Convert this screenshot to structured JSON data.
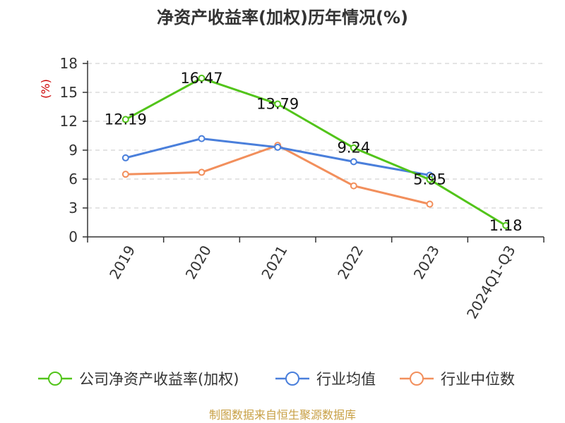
{
  "chart_data": {
    "type": "line",
    "title": "净资产收益率(加权)历年情况(%)",
    "ylabel": "(%)",
    "ylim": [
      0,
      18
    ],
    "yticks": [
      0,
      3,
      6,
      9,
      12,
      15,
      18
    ],
    "grid": true,
    "legend_position": "bottom",
    "categories": [
      "2019",
      "2020",
      "2021",
      "2022",
      "2023",
      "2024Q1-Q3"
    ],
    "series": [
      {
        "name": "公司净资产收益率(加权)",
        "color": "#52c41a",
        "values": [
          12.19,
          16.47,
          13.79,
          9.24,
          5.95,
          1.18
        ],
        "labels": [
          "12.19",
          "16.47",
          "13.79",
          "9.24",
          "5.95",
          "1.18"
        ]
      },
      {
        "name": "行业均值",
        "color": "#4a7fdb",
        "values": [
          8.2,
          10.2,
          9.3,
          7.8,
          6.4,
          null
        ]
      },
      {
        "name": "行业中位数",
        "color": "#f28f5c",
        "values": [
          6.5,
          6.7,
          9.5,
          5.3,
          3.4,
          null
        ]
      }
    ]
  },
  "source": {
    "text": "制图数据来自恒生聚源数据库",
    "color": "#c8a046"
  },
  "ylabel_color": "#cc0000"
}
